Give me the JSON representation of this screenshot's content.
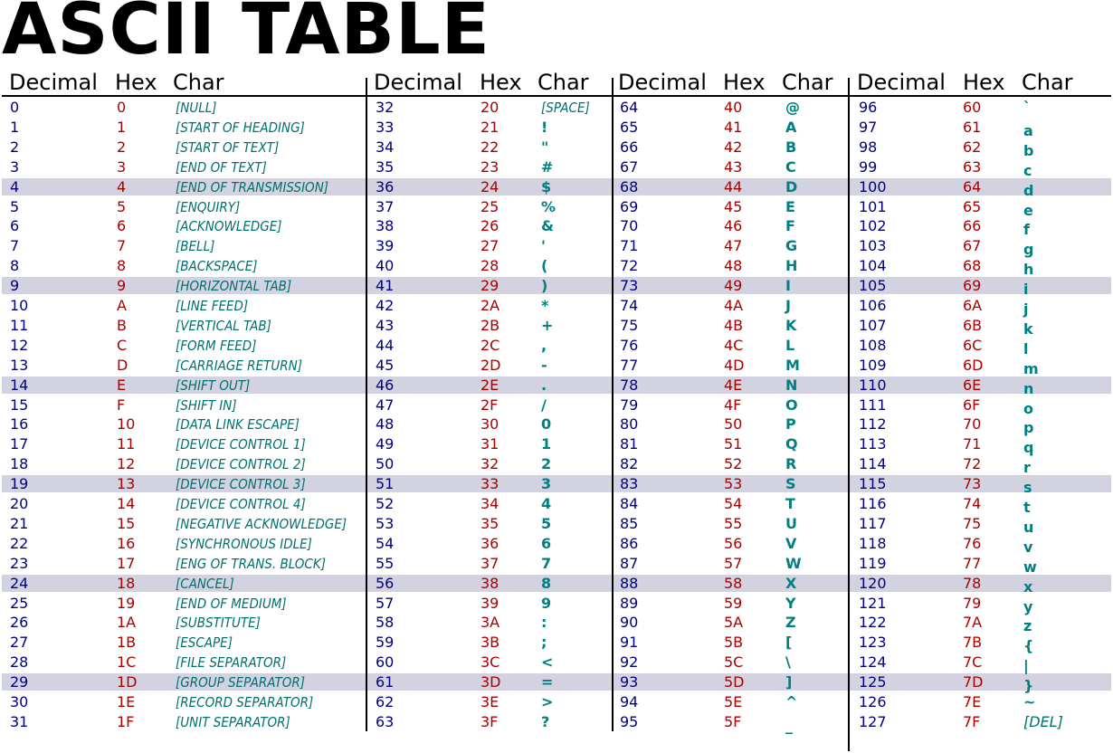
{
  "title": "ASCII TABLE",
  "headers": {
    "decimal": "Decimal",
    "hex": "Hex",
    "char": "Char"
  },
  "columns": [
    {
      "rows": [
        [
          "0",
          "0",
          "[NULL]"
        ],
        [
          "1",
          "1",
          "[START OF HEADING]"
        ],
        [
          "2",
          "2",
          "[START OF TEXT]"
        ],
        [
          "3",
          "3",
          "[END OF TEXT]"
        ],
        [
          "4",
          "4",
          "[END OF TRANSMISSION]"
        ],
        [
          "5",
          "5",
          "[ENQUIRY]"
        ],
        [
          "6",
          "6",
          "[ACKNOWLEDGE]"
        ],
        [
          "7",
          "7",
          "[BELL]"
        ],
        [
          "8",
          "8",
          "[BACKSPACE]"
        ],
        [
          "9",
          "9",
          "[HORIZONTAL TAB]"
        ],
        [
          "10",
          "A",
          "[LINE FEED]"
        ],
        [
          "11",
          "B",
          "[VERTICAL TAB]"
        ],
        [
          "12",
          "C",
          "[FORM FEED]"
        ],
        [
          "13",
          "D",
          "[CARRIAGE RETURN]"
        ],
        [
          "14",
          "E",
          "[SHIFT OUT]"
        ],
        [
          "15",
          "F",
          "[SHIFT IN]"
        ],
        [
          "16",
          "10",
          "[DATA LINK ESCAPE]"
        ],
        [
          "17",
          "11",
          "[DEVICE CONTROL 1]"
        ],
        [
          "18",
          "12",
          "[DEVICE CONTROL 2]"
        ],
        [
          "19",
          "13",
          "[DEVICE CONTROL 3]"
        ],
        [
          "20",
          "14",
          "[DEVICE CONTROL 4]"
        ],
        [
          "21",
          "15",
          "[NEGATIVE ACKNOWLEDGE]"
        ],
        [
          "22",
          "16",
          "[SYNCHRONOUS IDLE]"
        ],
        [
          "23",
          "17",
          "[ENG OF TRANS. BLOCK]"
        ],
        [
          "24",
          "18",
          "[CANCEL]"
        ],
        [
          "25",
          "19",
          "[END OF MEDIUM]"
        ],
        [
          "26",
          "1A",
          "[SUBSTITUTE]"
        ],
        [
          "27",
          "1B",
          "[ESCAPE]"
        ],
        [
          "28",
          "1C",
          "[FILE SEPARATOR]"
        ],
        [
          "29",
          "1D",
          "[GROUP SEPARATOR]"
        ],
        [
          "30",
          "1E",
          "[RECORD SEPARATOR]"
        ],
        [
          "31",
          "1F",
          "[UNIT SEPARATOR]"
        ]
      ]
    },
    {
      "rows": [
        [
          "32",
          "20",
          "[SPACE]"
        ],
        [
          "33",
          "21",
          "!"
        ],
        [
          "34",
          "22",
          "\""
        ],
        [
          "35",
          "23",
          "#"
        ],
        [
          "36",
          "24",
          "$"
        ],
        [
          "37",
          "25",
          "%"
        ],
        [
          "38",
          "26",
          "&"
        ],
        [
          "39",
          "27",
          "'"
        ],
        [
          "40",
          "28",
          "("
        ],
        [
          "41",
          "29",
          ")"
        ],
        [
          "42",
          "2A",
          "*"
        ],
        [
          "43",
          "2B",
          "+"
        ],
        [
          "44",
          "2C",
          ","
        ],
        [
          "45",
          "2D",
          "-"
        ],
        [
          "46",
          "2E",
          "."
        ],
        [
          "47",
          "2F",
          "/"
        ],
        [
          "48",
          "30",
          "0"
        ],
        [
          "49",
          "31",
          "1"
        ],
        [
          "50",
          "32",
          "2"
        ],
        [
          "51",
          "33",
          "3"
        ],
        [
          "52",
          "34",
          "4"
        ],
        [
          "53",
          "35",
          "5"
        ],
        [
          "54",
          "36",
          "6"
        ],
        [
          "55",
          "37",
          "7"
        ],
        [
          "56",
          "38",
          "8"
        ],
        [
          "57",
          "39",
          "9"
        ],
        [
          "58",
          "3A",
          ":"
        ],
        [
          "59",
          "3B",
          ";"
        ],
        [
          "60",
          "3C",
          "<"
        ],
        [
          "61",
          "3D",
          "="
        ],
        [
          "62",
          "3E",
          ">"
        ],
        [
          "63",
          "3F",
          "?"
        ]
      ]
    },
    {
      "rows": [
        [
          "64",
          "40",
          "@"
        ],
        [
          "65",
          "41",
          "A"
        ],
        [
          "66",
          "42",
          "B"
        ],
        [
          "67",
          "43",
          "C"
        ],
        [
          "68",
          "44",
          "D"
        ],
        [
          "69",
          "45",
          "E"
        ],
        [
          "70",
          "46",
          "F"
        ],
        [
          "71",
          "47",
          "G"
        ],
        [
          "72",
          "48",
          "H"
        ],
        [
          "73",
          "49",
          "I"
        ],
        [
          "74",
          "4A",
          "J"
        ],
        [
          "75",
          "4B",
          "K"
        ],
        [
          "76",
          "4C",
          "L"
        ],
        [
          "77",
          "4D",
          "M"
        ],
        [
          "78",
          "4E",
          "N"
        ],
        [
          "79",
          "4F",
          "O"
        ],
        [
          "80",
          "50",
          "P"
        ],
        [
          "81",
          "51",
          "Q"
        ],
        [
          "82",
          "52",
          "R"
        ],
        [
          "83",
          "53",
          "S"
        ],
        [
          "84",
          "54",
          "T"
        ],
        [
          "85",
          "55",
          "U"
        ],
        [
          "86",
          "56",
          "V"
        ],
        [
          "87",
          "57",
          "W"
        ],
        [
          "88",
          "58",
          "X"
        ],
        [
          "89",
          "59",
          "Y"
        ],
        [
          "90",
          "5A",
          "Z"
        ],
        [
          "91",
          "5B",
          "["
        ],
        [
          "92",
          "5C",
          "\\"
        ],
        [
          "93",
          "5D",
          "]"
        ],
        [
          "94",
          "5E",
          "^"
        ],
        [
          "95",
          "5F",
          "_"
        ]
      ]
    },
    {
      "rows": [
        [
          "96",
          "60",
          "`"
        ],
        [
          "97",
          "61",
          "a"
        ],
        [
          "98",
          "62",
          "b"
        ],
        [
          "99",
          "63",
          "c"
        ],
        [
          "100",
          "64",
          "d"
        ],
        [
          "101",
          "65",
          "e"
        ],
        [
          "102",
          "66",
          "f"
        ],
        [
          "103",
          "67",
          "g"
        ],
        [
          "104",
          "68",
          "h"
        ],
        [
          "105",
          "69",
          "i"
        ],
        [
          "106",
          "6A",
          "j"
        ],
        [
          "107",
          "6B",
          "k"
        ],
        [
          "108",
          "6C",
          "l"
        ],
        [
          "109",
          "6D",
          "m"
        ],
        [
          "110",
          "6E",
          "n"
        ],
        [
          "111",
          "6F",
          "o"
        ],
        [
          "112",
          "70",
          "p"
        ],
        [
          "113",
          "71",
          "q"
        ],
        [
          "114",
          "72",
          "r"
        ],
        [
          "115",
          "73",
          "s"
        ],
        [
          "116",
          "74",
          "t"
        ],
        [
          "117",
          "75",
          "u"
        ],
        [
          "118",
          "76",
          "v"
        ],
        [
          "119",
          "77",
          "w"
        ],
        [
          "120",
          "78",
          "x"
        ],
        [
          "121",
          "79",
          "y"
        ],
        [
          "122",
          "7A",
          "z"
        ],
        [
          "123",
          "7B",
          "{"
        ],
        [
          "124",
          "7C",
          "|"
        ],
        [
          "125",
          "7D",
          "}"
        ],
        [
          "126",
          "7E",
          "~"
        ],
        [
          "127",
          "7F",
          "[DEL]"
        ]
      ]
    }
  ],
  "colors": {
    "decimal": "#000080",
    "hex": "#aa0000",
    "char": "#008080",
    "band": "#d2d2e0"
  }
}
